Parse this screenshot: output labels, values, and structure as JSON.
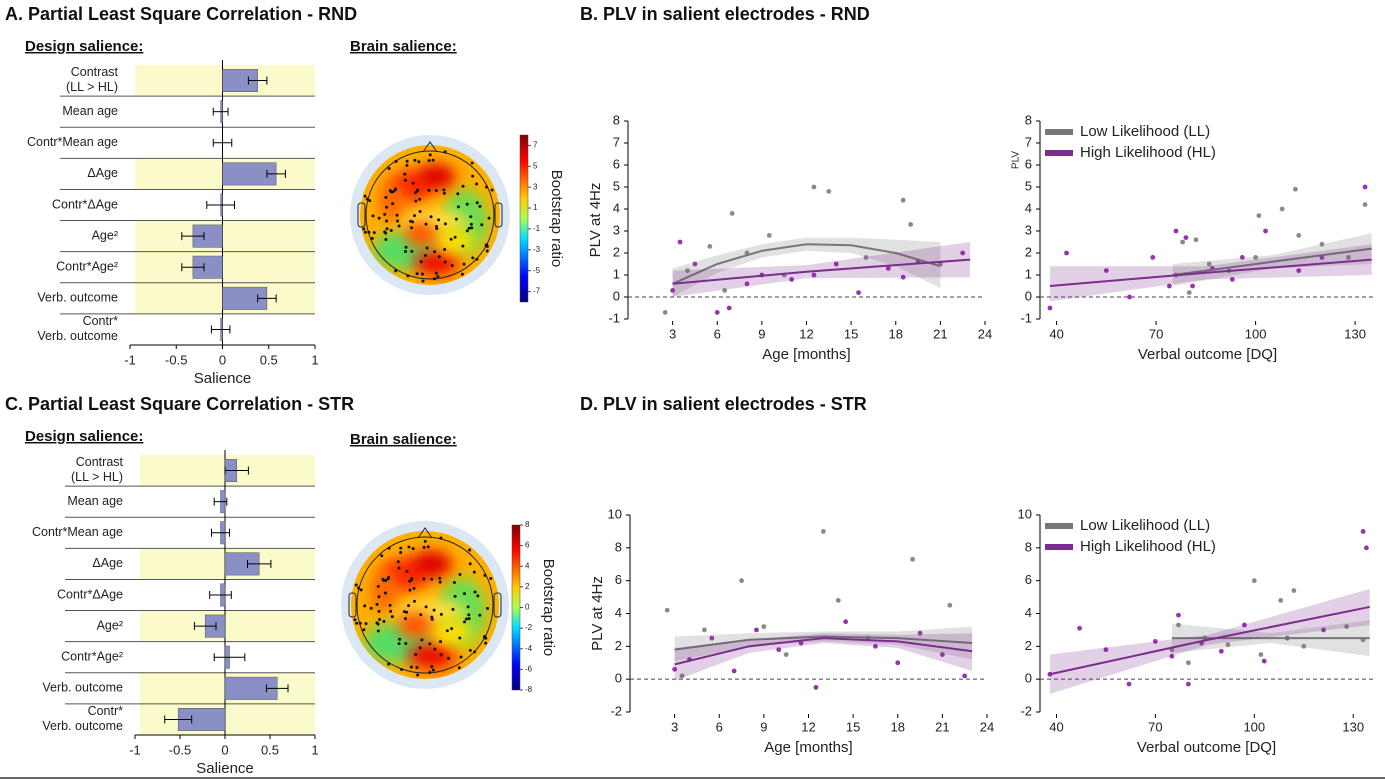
{
  "chart_data": [
    {
      "type": "hbar",
      "title": "A. Partial Least Square Correlation - RND",
      "subtitle": "Design salience:",
      "categories": [
        "Contrast\n(LL > HL)",
        "Mean age",
        "Contr*Mean age",
        "ΔAge",
        "Contr*ΔAge",
        "Age²",
        "Contr*Age²",
        "Verb. outcome",
        "Contr*\nVerb. outcome"
      ],
      "values": [
        0.38,
        -0.02,
        0,
        0.58,
        -0.02,
        -0.32,
        -0.32,
        0.48,
        -0.02
      ],
      "errors": [
        0.1,
        0.08,
        0.1,
        0.1,
        0.15,
        0.12,
        0.12,
        0.1,
        0.1
      ],
      "highlight": [
        true,
        false,
        false,
        true,
        false,
        true,
        true,
        true,
        false
      ],
      "color": "#8a8fc6",
      "highlight_color": "#fafaca",
      "xlim": [
        -1,
        1
      ],
      "xticks": [
        -1,
        -0.5,
        0,
        0.5,
        1
      ],
      "xlabel": "Salience"
    },
    {
      "type": "topomap",
      "title": "Brain salience:",
      "colorbar_label": "Bootstrap ratio",
      "clim": [
        -8,
        8
      ],
      "cticks": [
        7,
        5,
        3,
        1,
        -1,
        -3,
        -5,
        -7
      ]
    },
    {
      "type": "scatter_fit",
      "title": "B. PLV in salient electrodes - RND",
      "xlabel": "Age [months]",
      "ylabel": "PLV at 4Hz",
      "xlim": [
        0,
        24
      ],
      "xticks": [
        3,
        6,
        9,
        12,
        15,
        18,
        21,
        24
      ],
      "ylim": [
        -1,
        8
      ],
      "yticks": [
        -1,
        0,
        1,
        2,
        3,
        4,
        5,
        6,
        7,
        8
      ],
      "zero_line": true,
      "legend": false,
      "series": [
        {
          "kind": "points",
          "color": "#8a8a8a",
          "x": [
            2.5,
            4,
            5.5,
            6.5,
            7,
            8,
            9.5,
            10.5,
            12.5,
            13.5,
            16,
            18.5,
            19,
            21
          ],
          "values": [
            -0.7,
            1.2,
            2.3,
            0.3,
            3.8,
            2.0,
            2.8,
            1.0,
            5.0,
            4.8,
            1.8,
            4.4,
            3.3,
            1.5
          ]
        },
        {
          "kind": "points",
          "color": "#9b30b0",
          "x": [
            3,
            3.5,
            4.5,
            6,
            6.8,
            8,
            9,
            11,
            12.5,
            14,
            15.5,
            17.5,
            18.5,
            19.5,
            22.5
          ],
          "values": [
            0.3,
            2.5,
            1.5,
            -0.7,
            -0.5,
            0.6,
            1.0,
            0.8,
            1.0,
            1.5,
            0.2,
            1.3,
            0.9,
            1.6,
            2.0
          ]
        },
        {
          "kind": "fit",
          "color": "#777777",
          "x": [
            3,
            6,
            9,
            12,
            15,
            18,
            21
          ],
          "values": [
            0.6,
            1.5,
            2.1,
            2.4,
            2.35,
            2.0,
            1.4
          ],
          "lower": [
            0,
            1.1,
            1.8,
            2.1,
            2.0,
            1.4,
            0.4
          ],
          "upper": [
            1.3,
            1.9,
            2.4,
            2.7,
            2.7,
            2.6,
            2.5
          ]
        },
        {
          "kind": "fit",
          "color": "#7b2d8e",
          "x": [
            3,
            12,
            23
          ],
          "values": [
            0.6,
            1.15,
            1.7
          ],
          "lower": [
            0,
            0.85,
            0.9
          ],
          "upper": [
            1.2,
            1.45,
            2.5
          ]
        }
      ]
    },
    {
      "type": "scatter_fit",
      "xlabel": "Verbal outcome [DQ]",
      "ylabel": "PLV",
      "xlim": [
        35,
        136
      ],
      "xticks": [
        40,
        70,
        100,
        130
      ],
      "ylim": [
        -1,
        8
      ],
      "yticks": [
        -1,
        0,
        1,
        2,
        3,
        4,
        5,
        6,
        7,
        8
      ],
      "zero_line": true,
      "legend": true,
      "legend_loc": "upper left",
      "series": [
        {
          "kind": "points",
          "color": "#8a8a8a",
          "x": [
            76,
            78,
            80,
            82,
            86,
            92,
            100,
            101,
            108,
            112,
            113,
            120,
            128,
            133
          ],
          "values": [
            1.0,
            2.5,
            0.2,
            2.6,
            1.5,
            1.2,
            1.8,
            3.7,
            4.0,
            4.9,
            2.8,
            2.4,
            1.8,
            4.2
          ]
        },
        {
          "kind": "points",
          "color": "#9b30b0",
          "x": [
            38,
            43,
            55,
            62,
            69,
            74,
            76,
            79,
            81,
            87,
            93,
            96,
            103,
            113,
            120,
            133
          ],
          "values": [
            -0.5,
            2.0,
            1.2,
            0,
            1.8,
            0.5,
            3.0,
            2.7,
            0.5,
            1.3,
            0.8,
            1.8,
            3.0,
            1.2,
            1.8,
            5.0
          ]
        },
        {
          "kind": "fit",
          "name": "Low Likelihood (LL)",
          "color": "#777777",
          "x": [
            75,
            105,
            135
          ],
          "values": [
            1.0,
            1.6,
            2.2
          ],
          "lower": [
            0.5,
            1.3,
            1.5
          ],
          "upper": [
            1.5,
            1.9,
            2.9
          ]
        },
        {
          "kind": "fit",
          "name": "High Likelihood (HL)",
          "color": "#7b2d8e",
          "x": [
            38,
            85,
            135
          ],
          "values": [
            0.5,
            1.1,
            1.7
          ],
          "lower": [
            -0.2,
            0.8,
            1.0
          ],
          "upper": [
            1.4,
            1.4,
            2.4
          ]
        }
      ]
    },
    {
      "type": "hbar",
      "title": "C. Partial Least Square Correlation - STR",
      "subtitle": "Design salience:",
      "categories": [
        "Contrast\n(LL > HL)",
        "Mean age",
        "Contr*Mean age",
        "ΔAge",
        "Contr*ΔAge",
        "Age²",
        "Contr*Age²",
        "Verb. outcome",
        "Contr*\nVerb. outcome"
      ],
      "values": [
        0.13,
        -0.05,
        -0.05,
        0.38,
        -0.05,
        -0.22,
        0.05,
        0.58,
        -0.52
      ],
      "errors": [
        0.13,
        0.07,
        0.1,
        0.13,
        0.12,
        0.12,
        0.17,
        0.12,
        0.15
      ],
      "highlight": [
        true,
        false,
        false,
        true,
        false,
        true,
        false,
        true,
        true
      ],
      "color": "#8a8fc6",
      "highlight_color": "#fafaca",
      "xlim": [
        -1,
        1
      ],
      "xticks": [
        -1,
        -0.5,
        0,
        0.5,
        1
      ],
      "xlabel": "Salience"
    },
    {
      "type": "topomap",
      "title": "Brain salience:",
      "colorbar_label": "Bootstrap ratio",
      "clim": [
        -8,
        8
      ],
      "cticks": [
        8,
        6,
        4,
        2,
        0,
        -2,
        -4,
        -6,
        -8
      ]
    },
    {
      "type": "scatter_fit",
      "title": "D. PLV in salient electrodes - STR",
      "xlabel": "Age [months]",
      "ylabel": "PLV at 4Hz",
      "xlim": [
        0,
        24
      ],
      "xticks": [
        3,
        6,
        9,
        12,
        15,
        18,
        21,
        24
      ],
      "ylim": [
        -2,
        10
      ],
      "yticks": [
        -2,
        0,
        2,
        4,
        6,
        8,
        10
      ],
      "zero_line": true,
      "legend": false,
      "series": [
        {
          "kind": "points",
          "color": "#8a8a8a",
          "x": [
            2.5,
            3.5,
            5,
            7.5,
            9,
            10.5,
            13,
            14,
            16,
            19,
            21.5
          ],
          "values": [
            4.2,
            0.2,
            3.0,
            6.0,
            3.2,
            1.5,
            9.0,
            4.8,
            2.5,
            7.3,
            4.5
          ]
        },
        {
          "kind": "points",
          "color": "#9b30b0",
          "x": [
            3,
            4,
            5.5,
            7,
            8.5,
            10,
            11.5,
            12.5,
            14.5,
            16.5,
            18,
            19.5,
            21,
            22.5
          ],
          "values": [
            0.6,
            1.2,
            2.5,
            0.5,
            3.0,
            1.8,
            2.2,
            -0.5,
            3.5,
            2.0,
            1.0,
            2.8,
            1.5,
            0.2
          ]
        },
        {
          "kind": "fit",
          "color": "#777777",
          "x": [
            3,
            8,
            13,
            18,
            23
          ],
          "values": [
            1.8,
            2.4,
            2.6,
            2.5,
            2.2
          ],
          "lower": [
            1.1,
            2.0,
            2.3,
            2.1,
            1.2
          ],
          "upper": [
            2.6,
            2.8,
            2.9,
            2.9,
            3.2
          ]
        },
        {
          "kind": "fit",
          "color": "#7b2d8e",
          "x": [
            3,
            8,
            13,
            18,
            23
          ],
          "values": [
            0.9,
            2.0,
            2.5,
            2.3,
            1.7
          ],
          "lower": [
            -0.1,
            1.6,
            2.2,
            1.9,
            0.5
          ],
          "upper": [
            1.9,
            2.4,
            2.8,
            2.7,
            2.8
          ]
        }
      ]
    },
    {
      "type": "scatter_fit",
      "xlabel": "Verbal outcome [DQ]",
      "xlim": [
        35,
        136
      ],
      "xticks": [
        40,
        70,
        100,
        130
      ],
      "ylim": [
        -2,
        10
      ],
      "yticks": [
        -2,
        0,
        2,
        4,
        6,
        8,
        10
      ],
      "zero_line": true,
      "legend": true,
      "legend_loc": "upper left",
      "series": [
        {
          "kind": "points",
          "color": "#8a8a8a",
          "x": [
            75,
            77,
            80,
            85,
            92,
            100,
            102,
            108,
            112,
            115,
            128,
            133
          ],
          "values": [
            1.8,
            3.3,
            1.0,
            2.5,
            2.1,
            6.0,
            1.5,
            4.8,
            5.4,
            2.0,
            3.2,
            2.4
          ]
        },
        {
          "kind": "points",
          "color": "#9b30b0",
          "x": [
            38,
            47,
            55,
            62,
            70,
            75,
            77,
            80,
            84,
            90,
            97,
            103,
            110,
            121,
            133,
            134
          ],
          "values": [
            0.3,
            3.1,
            1.8,
            -0.3,
            2.3,
            1.4,
            3.9,
            -0.3,
            2.2,
            1.7,
            3.3,
            1.1,
            2.5,
            3.0,
            9.0,
            8.0
          ]
        },
        {
          "kind": "fit",
          "name": "Low Likelihood (LL)",
          "color": "#777777",
          "x": [
            75,
            105,
            135
          ],
          "values": [
            2.5,
            2.5,
            2.5
          ],
          "lower": [
            1.6,
            2.2,
            1.4
          ],
          "upper": [
            3.4,
            2.8,
            3.6
          ]
        },
        {
          "kind": "fit",
          "name": "High Likelihood (HL)",
          "color": "#7b2d8e",
          "x": [
            38,
            86,
            135
          ],
          "values": [
            0.3,
            2.4,
            4.4
          ],
          "lower": [
            -0.9,
            2.1,
            3.3
          ],
          "upper": [
            1.5,
            2.7,
            5.5
          ]
        }
      ]
    }
  ]
}
